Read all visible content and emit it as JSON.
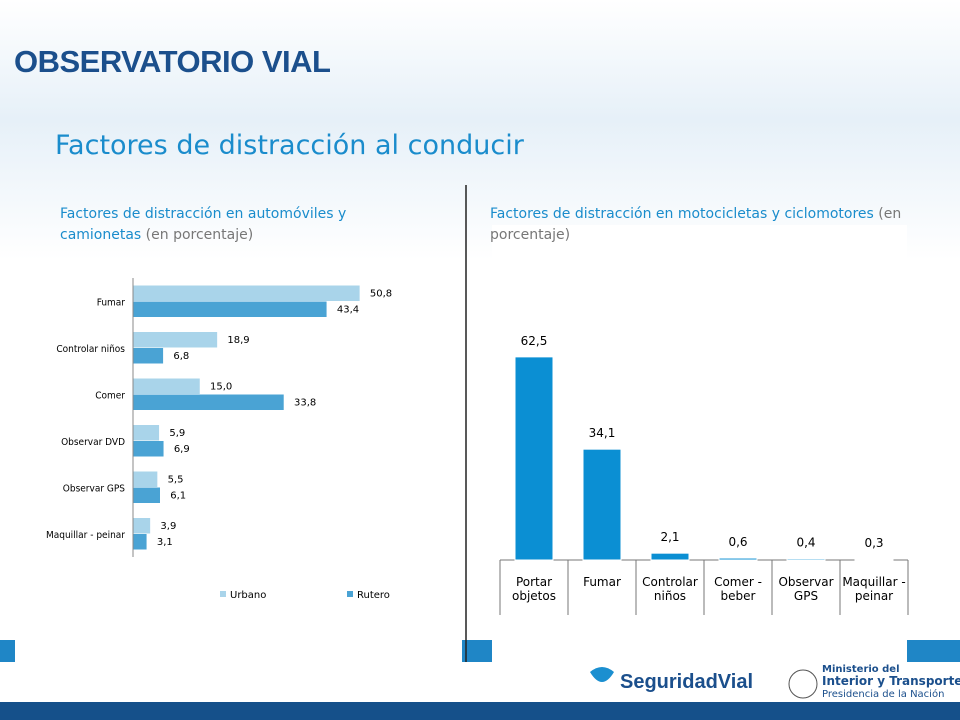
{
  "header": {
    "brand": "OBSERVATORIO VIAL",
    "title": "Factores de distracción al conducir"
  },
  "chart_data": [
    {
      "type": "bar",
      "orientation": "horizontal",
      "title": "Factores de distracción en automóviles y camionetas",
      "subtitle": "(en porcentaje)",
      "categories": [
        "Fumar",
        "Controlar niños",
        "Comer",
        "Observar DVD",
        "Observar GPS",
        "Maquillar - peinar"
      ],
      "series": [
        {
          "name": "Urbano",
          "color": "#a9d4ea",
          "values": [
            50.8,
            18.9,
            15.0,
            5.9,
            5.5,
            3.9
          ],
          "value_labels": [
            "50,8",
            "18,9",
            "15,0",
            "5,9",
            "5,5",
            "3,9"
          ]
        },
        {
          "name": "Rutero",
          "color": "#4aa3d4",
          "values": [
            43.4,
            6.8,
            33.8,
            6.9,
            6.1,
            3.1
          ],
          "value_labels": [
            "43,4",
            "6,8",
            "33,8",
            "6,9",
            "6,1",
            "3,1"
          ]
        }
      ],
      "xlim": [
        0,
        60
      ],
      "legend": "bottom"
    },
    {
      "type": "bar",
      "orientation": "vertical",
      "title": "Factores de distracción en motocicletas y  ciclomotores",
      "subtitle": "(en porcentaje)",
      "categories": [
        "Portar objetos",
        "Fumar",
        "Controlar niños",
        "Comer - beber",
        "Observar GPS",
        "Maquillar - peinar"
      ],
      "values": [
        62.5,
        34.1,
        2.1,
        0.6,
        0.4,
        0.3
      ],
      "value_labels": [
        "62,5",
        "34,1",
        "2,1",
        "0,6",
        "0,4",
        "0,3"
      ],
      "color": "#0b8fd3",
      "ylim": [
        0,
        80
      ]
    }
  ],
  "footer": {
    "logo": "SeguridadVial",
    "ministry": [
      "Ministerio del",
      "Interior y Transporte",
      "Presidencia de la Nación"
    ]
  }
}
